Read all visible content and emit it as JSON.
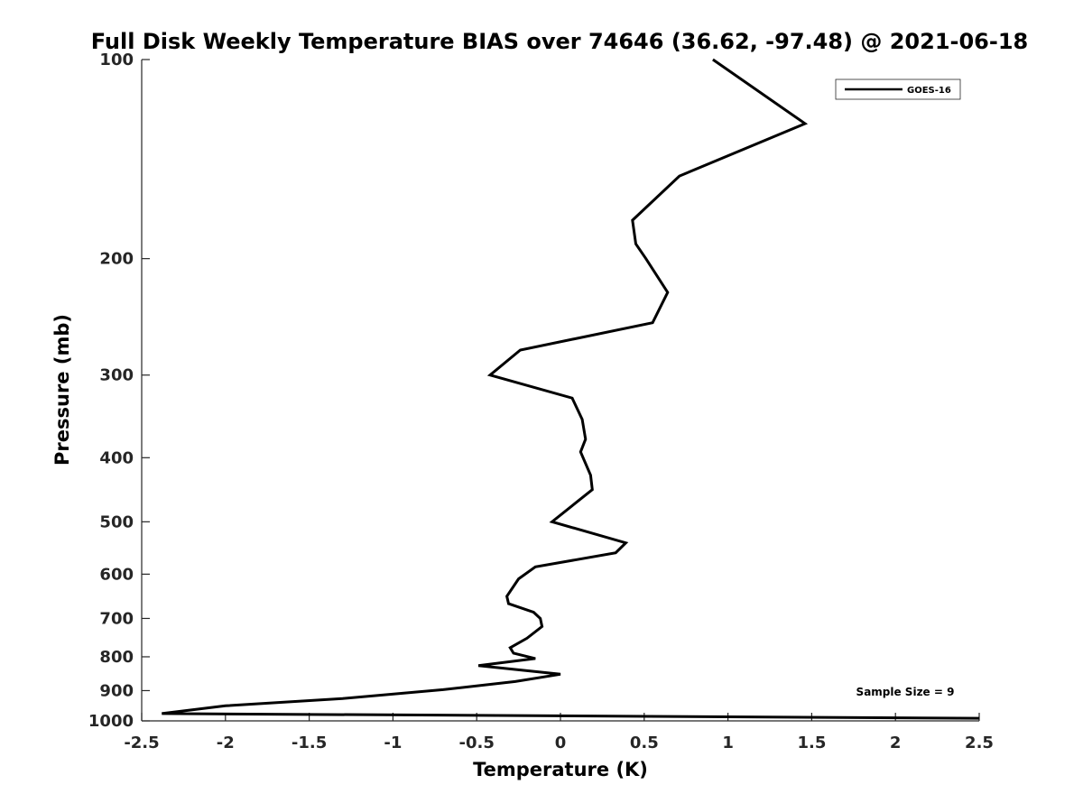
{
  "chart_data": {
    "type": "line",
    "title": "Full Disk Weekly Temperature BIAS over 74646 (36.62, -97.48) @ 2021-06-18",
    "xlabel": "Temperature (K)",
    "ylabel": "Pressure (mb)",
    "xlim": [
      -2.5,
      2.5
    ],
    "ylim": [
      100,
      1000
    ],
    "y_scale": "log",
    "y_reversed": true,
    "x_ticks": [
      "-2.5",
      "-2",
      "-1.5",
      "-1",
      "-0.5",
      "0",
      "0.5",
      "1",
      "1.5",
      "2",
      "2.5"
    ],
    "y_ticks": [
      "100",
      "200",
      "300",
      "400",
      "500",
      "600",
      "700",
      "800",
      "900",
      "1000"
    ],
    "grid": false,
    "legend_position": "top-right",
    "annotation": "Sample Size = 9",
    "series": [
      {
        "name": "GOES-16",
        "color": "#000000",
        "points": [
          {
            "x": 0.91,
            "y": 100
          },
          {
            "x": 1.46,
            "y": 125
          },
          {
            "x": 0.71,
            "y": 150
          },
          {
            "x": 0.43,
            "y": 175
          },
          {
            "x": 0.45,
            "y": 190
          },
          {
            "x": 0.51,
            "y": 200
          },
          {
            "x": 0.64,
            "y": 225
          },
          {
            "x": 0.55,
            "y": 250
          },
          {
            "x": -0.24,
            "y": 275
          },
          {
            "x": -0.42,
            "y": 300
          },
          {
            "x": 0.07,
            "y": 325
          },
          {
            "x": 0.13,
            "y": 350
          },
          {
            "x": 0.15,
            "y": 375
          },
          {
            "x": 0.12,
            "y": 392
          },
          {
            "x": 0.18,
            "y": 425
          },
          {
            "x": 0.19,
            "y": 447
          },
          {
            "x": -0.05,
            "y": 500
          },
          {
            "x": 0.39,
            "y": 538
          },
          {
            "x": 0.33,
            "y": 557
          },
          {
            "x": -0.15,
            "y": 585
          },
          {
            "x": -0.25,
            "y": 610
          },
          {
            "x": -0.32,
            "y": 648
          },
          {
            "x": -0.31,
            "y": 665
          },
          {
            "x": -0.16,
            "y": 685
          },
          {
            "x": -0.12,
            "y": 700
          },
          {
            "x": -0.11,
            "y": 720
          },
          {
            "x": -0.2,
            "y": 750
          },
          {
            "x": -0.3,
            "y": 775
          },
          {
            "x": -0.28,
            "y": 790
          },
          {
            "x": -0.15,
            "y": 805
          },
          {
            "x": -0.49,
            "y": 825
          },
          {
            "x": 0.0,
            "y": 850
          },
          {
            "x": -0.27,
            "y": 872
          },
          {
            "x": -0.7,
            "y": 897
          },
          {
            "x": -1.3,
            "y": 925
          },
          {
            "x": -2.0,
            "y": 949
          },
          {
            "x": -2.38,
            "y": 975
          },
          {
            "x": 2.5,
            "y": 991
          }
        ]
      }
    ]
  }
}
